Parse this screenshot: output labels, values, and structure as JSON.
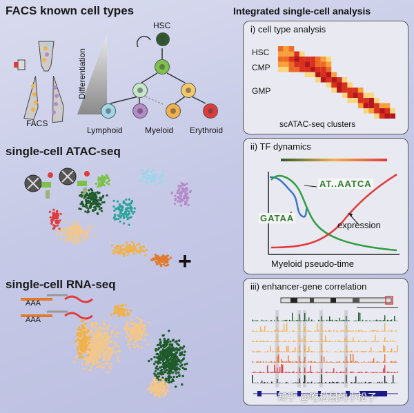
{
  "left": {
    "facs_title": "FACS known cell types",
    "facs_label": "FACS",
    "differentiation_label": "Differentiation",
    "hsc_label": "HSC",
    "lineages": [
      "Lymphoid",
      "Myeloid",
      "Erythroid"
    ],
    "atac_title": "single-cell ATAC-seq",
    "rna_title": "single-cell RNA-seq",
    "aaa_label": "AAA",
    "plus": "+"
  },
  "right": {
    "title": "Integrated single-cell analysis",
    "panel1": {
      "title": "i) cell type analysis",
      "row_labels": [
        "HSC",
        "CMP",
        "GMP"
      ],
      "xlabel": "scATAC-seq clusters"
    },
    "panel2": {
      "title": "ii) TF dynamics",
      "motif1": "AT..AATCA",
      "motif2": "GATAA",
      "expression_label": "expression",
      "xlabel": "Myeloid pseudo-time"
    },
    "panel3": {
      "title": "iii) enhancer-gene correlation"
    }
  },
  "watermark": "知乎 @吃松鼠的小松子",
  "colors": {
    "lymphoid": "#9fd6e8",
    "myeloid_purple": "#b58ac8",
    "myeloid_orange": "#f0b24a",
    "erythroid": "#e03b3b",
    "hsc": "#2d5a2d",
    "progenitor": "#7cc24a",
    "dark_green": "#1f5a2a",
    "teal": "#2aa39a",
    "light_orange": "#f3c78a",
    "heatmap_red": "#c4161c"
  }
}
